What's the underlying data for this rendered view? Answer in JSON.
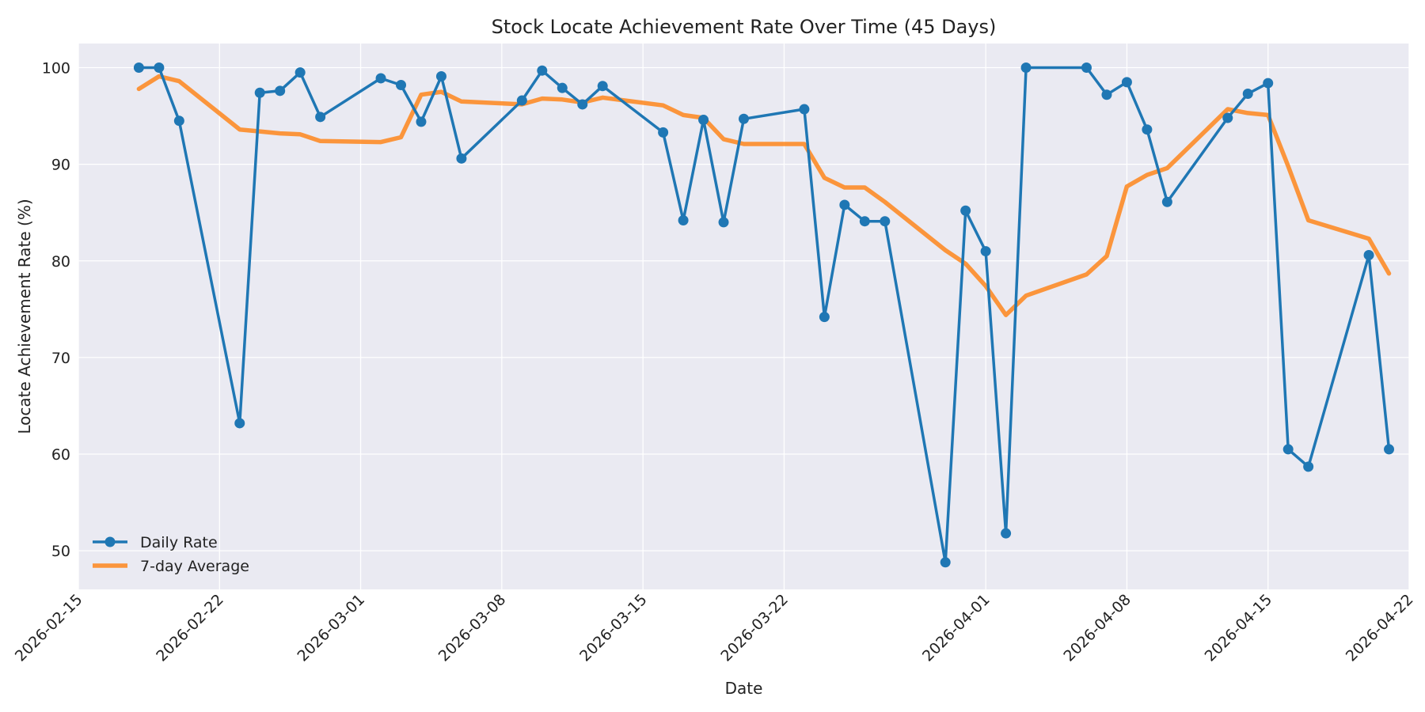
{
  "chart_data": {
    "type": "line",
    "title": "Stock Locate Achievement Rate Over Time (45 Days)",
    "xlabel": "Date",
    "ylabel": "Locate Achievement Rate (%)",
    "xlim": [
      "2026-02-15",
      "2026-04-22"
    ],
    "ylim": [
      46,
      102.5
    ],
    "x_ticks": [
      "2026-02-15",
      "2026-02-22",
      "2026-03-01",
      "2026-03-08",
      "2026-03-15",
      "2026-03-22",
      "2026-04-01",
      "2026-04-08",
      "2026-04-15",
      "2026-04-22"
    ],
    "y_ticks": [
      50,
      60,
      70,
      80,
      90,
      100
    ],
    "grid": true,
    "legend_position": "lower-left",
    "colors": {
      "plot_background": "#eaeaf2",
      "grid": "#ffffff",
      "daily": "#1f77b4",
      "average": "#ff7f0e"
    },
    "series": [
      {
        "name": "Daily Rate",
        "marker": "circle",
        "x": [
          "2026-02-18",
          "2026-02-19",
          "2026-02-20",
          "2026-02-23",
          "2026-02-24",
          "2026-02-25",
          "2026-02-26",
          "2026-02-27",
          "2026-03-02",
          "2026-03-03",
          "2026-03-04",
          "2026-03-05",
          "2026-03-06",
          "2026-03-09",
          "2026-03-10",
          "2026-03-11",
          "2026-03-12",
          "2026-03-13",
          "2026-03-16",
          "2026-03-17",
          "2026-03-18",
          "2026-03-19",
          "2026-03-20",
          "2026-03-23",
          "2026-03-24",
          "2026-03-25",
          "2026-03-26",
          "2026-03-27",
          "2026-03-30",
          "2026-03-31",
          "2026-04-01",
          "2026-04-02",
          "2026-04-03",
          "2026-04-06",
          "2026-04-07",
          "2026-04-08",
          "2026-04-09",
          "2026-04-10",
          "2026-04-13",
          "2026-04-14",
          "2026-04-15",
          "2026-04-16",
          "2026-04-17",
          "2026-04-20",
          "2026-04-21"
        ],
        "values": [
          100.0,
          100.0,
          94.5,
          63.2,
          97.4,
          97.6,
          99.5,
          94.9,
          98.9,
          98.2,
          94.4,
          99.1,
          90.6,
          96.6,
          99.7,
          97.9,
          96.2,
          98.1,
          93.3,
          84.2,
          94.6,
          84.0,
          94.7,
          95.7,
          74.2,
          85.8,
          84.1,
          84.1,
          48.8,
          85.2,
          81.0,
          51.8,
          100.0,
          100.0,
          97.2,
          98.5,
          93.6,
          86.1,
          94.8,
          97.3,
          98.4,
          60.5,
          58.7,
          80.6,
          60.5
        ]
      },
      {
        "name": "7-day Average",
        "x": [
          "2026-02-18",
          "2026-02-19",
          "2026-02-20",
          "2026-02-23",
          "2026-02-24",
          "2026-02-25",
          "2026-02-26",
          "2026-02-27",
          "2026-03-02",
          "2026-03-03",
          "2026-03-04",
          "2026-03-05",
          "2026-03-06",
          "2026-03-09",
          "2026-03-10",
          "2026-03-11",
          "2026-03-12",
          "2026-03-13",
          "2026-03-16",
          "2026-03-17",
          "2026-03-18",
          "2026-03-19",
          "2026-03-20",
          "2026-03-23",
          "2026-03-24",
          "2026-03-25",
          "2026-03-26",
          "2026-03-27",
          "2026-03-30",
          "2026-03-31",
          "2026-04-01",
          "2026-04-02",
          "2026-04-03",
          "2026-04-06",
          "2026-04-07",
          "2026-04-08",
          "2026-04-09",
          "2026-04-10",
          "2026-04-13",
          "2026-04-14",
          "2026-04-15",
          "2026-04-16",
          "2026-04-17",
          "2026-04-20",
          "2026-04-21"
        ],
        "values": [
          97.8,
          99.1,
          98.6,
          93.6,
          93.4,
          93.2,
          93.1,
          92.4,
          92.3,
          92.8,
          97.2,
          97.5,
          96.5,
          96.2,
          96.8,
          96.7,
          96.4,
          96.9,
          96.1,
          95.1,
          94.8,
          92.6,
          92.1,
          92.1,
          88.6,
          87.6,
          87.6,
          86.1,
          81.1,
          79.7,
          77.4,
          74.4,
          76.4,
          78.6,
          80.5,
          87.7,
          88.9,
          89.6,
          95.7,
          95.3,
          95.1,
          89.8,
          84.2,
          82.3,
          78.7
        ]
      }
    ]
  }
}
